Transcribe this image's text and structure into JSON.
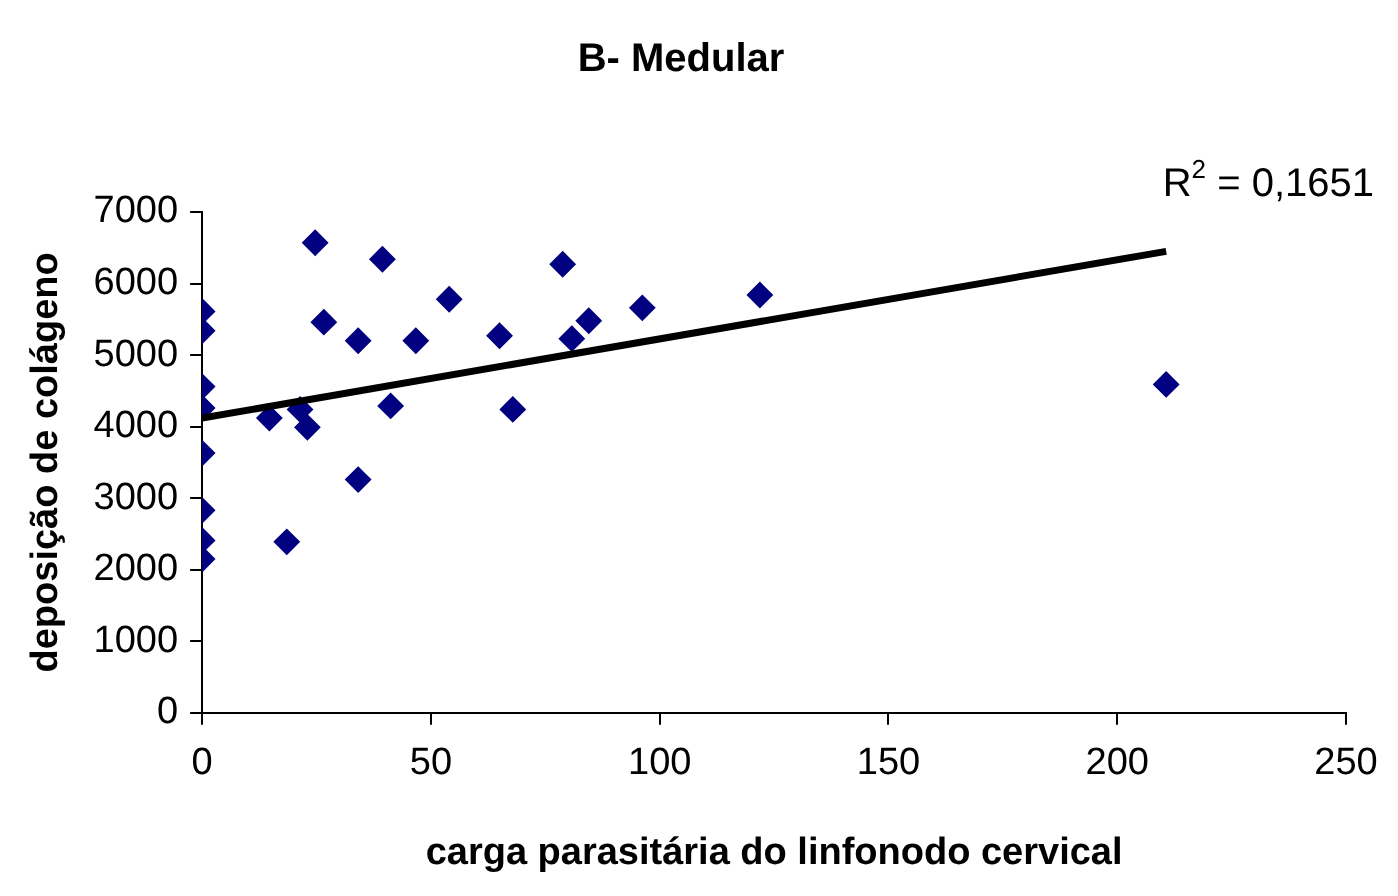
{
  "chart_data": {
    "type": "scatter",
    "title": "B- Medular",
    "xlabel": "carga parasitária do linfonodo cervical",
    "ylabel": "deposição de colágeno",
    "annotations": [
      "R$^{2}$ = 0,1651"
    ],
    "xlim": [
      0,
      250
    ],
    "xticks": [
      0,
      50,
      100,
      150,
      200,
      250
    ],
    "ylim": [
      0,
      7000
    ],
    "yticks": [
      0,
      1000,
      2000,
      3000,
      4000,
      5000,
      6000,
      7000
    ],
    "grid": false,
    "legend": false,
    "marker": "diamond",
    "series": [
      {
        "type": "scatter",
        "color": "#000080",
        "x": [
          0,
          0,
          0,
          0,
          0,
          0,
          0,
          0,
          14.7,
          18.5,
          21.4,
          23,
          24.7,
          26.6,
          34.1,
          34.1,
          39.4,
          41.2,
          46.7,
          54,
          65,
          67.9,
          78.8,
          80.8,
          84.5,
          96.2,
          121.9,
          210.7
        ],
        "values": [
          5610,
          5340,
          4560,
          4260,
          3630,
          2830,
          2410,
          2150,
          4120,
          2390,
          4240,
          3990,
          6570,
          5460,
          5200,
          3260,
          6340,
          4290,
          5200,
          5780,
          5270,
          4240,
          6270,
          5230,
          5480,
          5660,
          5840,
          4590
        ]
      },
      {
        "type": "line",
        "color": "#000000",
        "x": [
          0,
          210.7
        ],
        "values": [
          4120,
          6450
        ],
        "marker": "none",
        "line_style": "solid"
      }
    ]
  }
}
